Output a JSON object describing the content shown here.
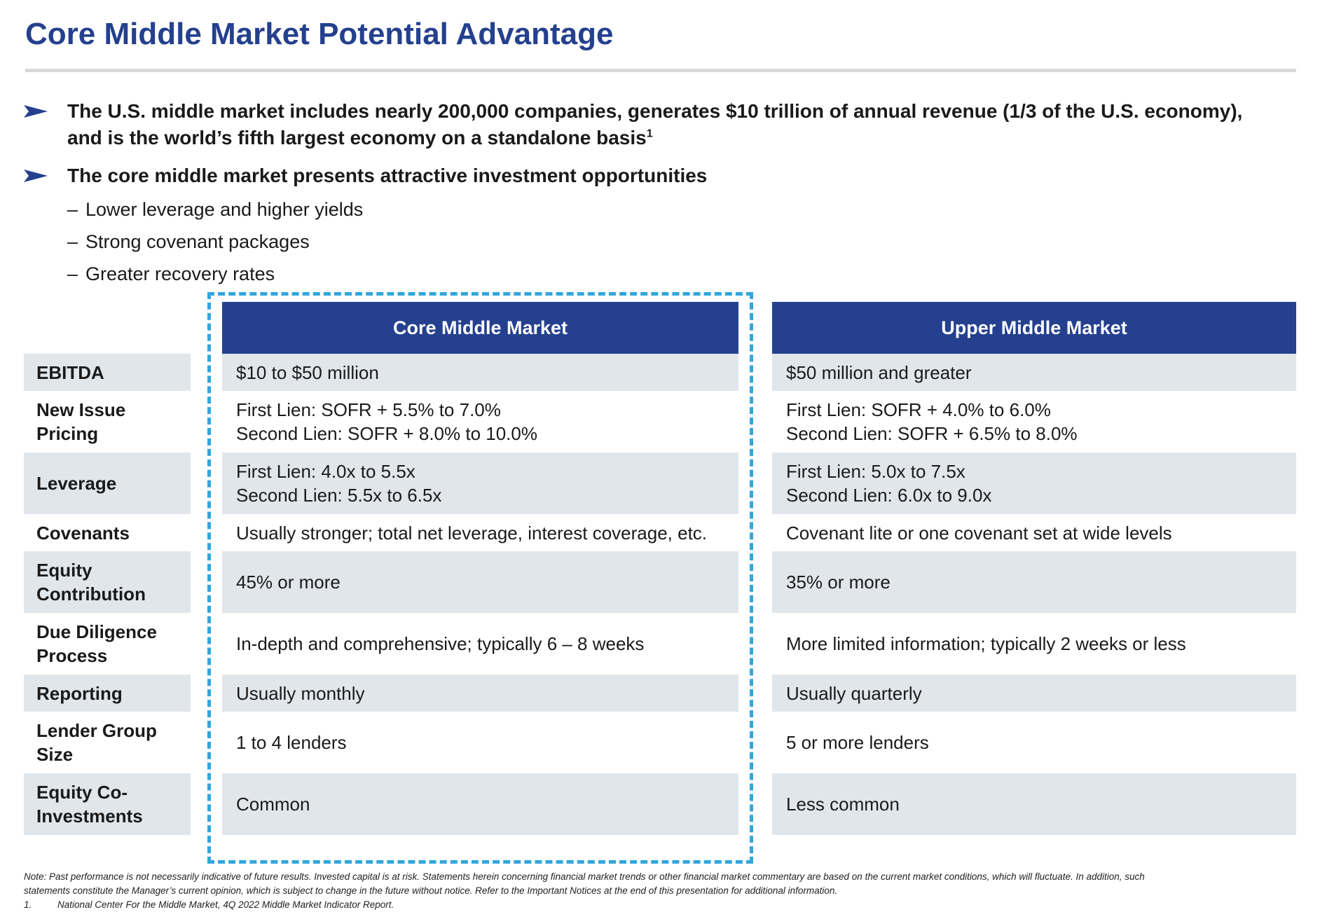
{
  "title": "Core Middle Market Potential Advantage",
  "accent_color": "#24408e",
  "highlight_color": "#33a6dc",
  "bullets": [
    {
      "line1": "The U.S. middle market includes nearly 200,000 companies, generates $10 trillion of annual revenue (1/3 of the U.S. economy),",
      "line2": "and is the world’s fifth largest economy on a standalone basis",
      "footnote_ref": "1"
    },
    {
      "text": "The core middle market presents attractive investment opportunities",
      "subitems": [
        "Lower leverage and higher yields",
        "Strong covenant packages",
        "Greater recovery rates"
      ]
    }
  ],
  "sub_dash": "–",
  "table": {
    "columns": [
      "Core Middle Market",
      "Upper Middle Market"
    ],
    "rows": [
      {
        "label": [
          "EBITDA"
        ],
        "core": [
          "$10 to $50 million"
        ],
        "upper": [
          "$50 million and greater"
        ]
      },
      {
        "label": [
          "New Issue",
          "Pricing"
        ],
        "core": [
          "First Lien: SOFR + 5.5% to 7.0%",
          "Second Lien: SOFR + 8.0% to 10.0%"
        ],
        "upper": [
          "First Lien: SOFR + 4.0% to 6.0%",
          "Second Lien: SOFR + 6.5% to 8.0%"
        ]
      },
      {
        "label": [
          "Leverage"
        ],
        "core": [
          "First Lien: 4.0x to 5.5x",
          "Second Lien: 5.5x to 6.5x"
        ],
        "upper": [
          "First Lien: 5.0x to 7.5x",
          "Second Lien: 6.0x to 9.0x"
        ]
      },
      {
        "label": [
          "Covenants"
        ],
        "core": [
          "Usually stronger; total net leverage, interest coverage, etc."
        ],
        "upper": [
          "Covenant lite or one covenant set at wide levels"
        ]
      },
      {
        "label": [
          "Equity",
          "Contribution"
        ],
        "core": [
          "45% or more"
        ],
        "upper": [
          "35% or more"
        ]
      },
      {
        "label": [
          "Due Diligence",
          "Process"
        ],
        "core": [
          "In-depth and comprehensive; typically 6 – 8 weeks"
        ],
        "upper": [
          "More limited information; typically 2 weeks or less"
        ]
      },
      {
        "label": [
          "Reporting"
        ],
        "core": [
          "Usually monthly"
        ],
        "upper": [
          "Usually quarterly"
        ]
      },
      {
        "label": [
          "Lender Group",
          "Size"
        ],
        "core": [
          "1 to 4 lenders"
        ],
        "upper": [
          "5 or more lenders"
        ]
      },
      {
        "label": [
          "Equity Co-",
          "Investments"
        ],
        "core": [
          "Common"
        ],
        "upper": [
          "Less common"
        ]
      }
    ]
  },
  "note": {
    "line1": "Note: Past performance is not necessarily indicative of future results. Invested capital is at risk. Statements herein concerning financial market trends or other financial market commentary are based on the current market conditions, which will fluctuate. In addition, such",
    "line2": "statements constitute the Manager’s current opinion, which is subject to change in the future without notice. Refer to the Important Notices at the end of this presentation for additional information.",
    "footnote_number": "1.",
    "footnote_text": "National Center For the Middle Market, 4Q 2022 Middle Market Indicator Report."
  }
}
